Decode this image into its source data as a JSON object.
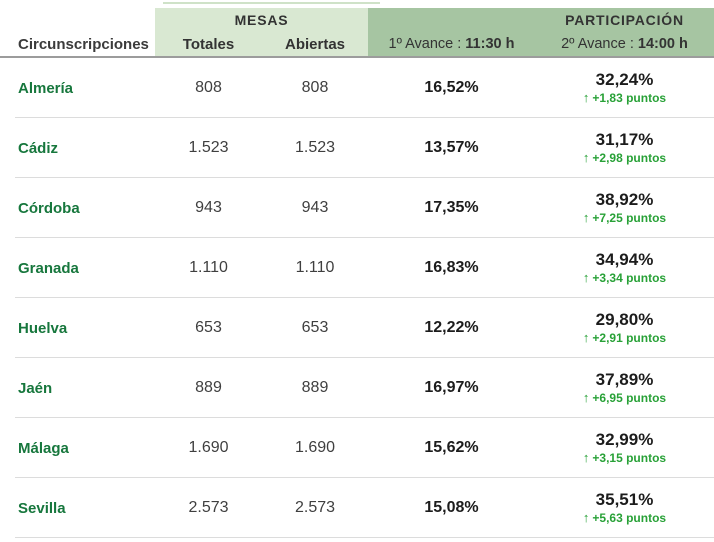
{
  "colors": {
    "mesas_header_bg": "#d9e8d2",
    "participacion_header_bg": "#a6c5a2",
    "province_text": "#17773d",
    "delta_text": "#28a137",
    "value_text": "#3f3f3f",
    "percent_text": "#1c1c1c",
    "row_separator": "#dcdcdc",
    "header_border": "#9c9c9c"
  },
  "icons": {
    "up_arrow": "↑"
  },
  "header": {
    "circunscripciones": "Circunscripciones",
    "mesas": "MESAS",
    "participacion": "PARTICIPACIÓN",
    "totales": "Totales",
    "abiertas": "Abiertas",
    "avance1_label": "1º Avance : ",
    "avance1_time": "11:30 h",
    "avance2_label": "2º Avance : ",
    "avance2_time": "14:00 h"
  },
  "rows": [
    {
      "name": "Almería",
      "totales": "808",
      "abiertas": "808",
      "avance1": "16,52%",
      "avance2": "32,24%",
      "delta": "+1,83 puntos"
    },
    {
      "name": "Cádiz",
      "totales": "1.523",
      "abiertas": "1.523",
      "avance1": "13,57%",
      "avance2": "31,17%",
      "delta": "+2,98 puntos"
    },
    {
      "name": "Córdoba",
      "totales": "943",
      "abiertas": "943",
      "avance1": "17,35%",
      "avance2": "38,92%",
      "delta": "+7,25 puntos"
    },
    {
      "name": "Granada",
      "totales": "1.110",
      "abiertas": "1.110",
      "avance1": "16,83%",
      "avance2": "34,94%",
      "delta": "+3,34 puntos"
    },
    {
      "name": "Huelva",
      "totales": "653",
      "abiertas": "653",
      "avance1": "12,22%",
      "avance2": "29,80%",
      "delta": "+2,91 puntos"
    },
    {
      "name": "Jaén",
      "totales": "889",
      "abiertas": "889",
      "avance1": "16,97%",
      "avance2": "37,89%",
      "delta": "+6,95 puntos"
    },
    {
      "name": "Málaga",
      "totales": "1.690",
      "abiertas": "1.690",
      "avance1": "15,62%",
      "avance2": "32,99%",
      "delta": "+3,15 puntos"
    },
    {
      "name": "Sevilla",
      "totales": "2.573",
      "abiertas": "2.573",
      "avance1": "15,08%",
      "avance2": "35,51%",
      "delta": "+5,63 puntos"
    }
  ]
}
